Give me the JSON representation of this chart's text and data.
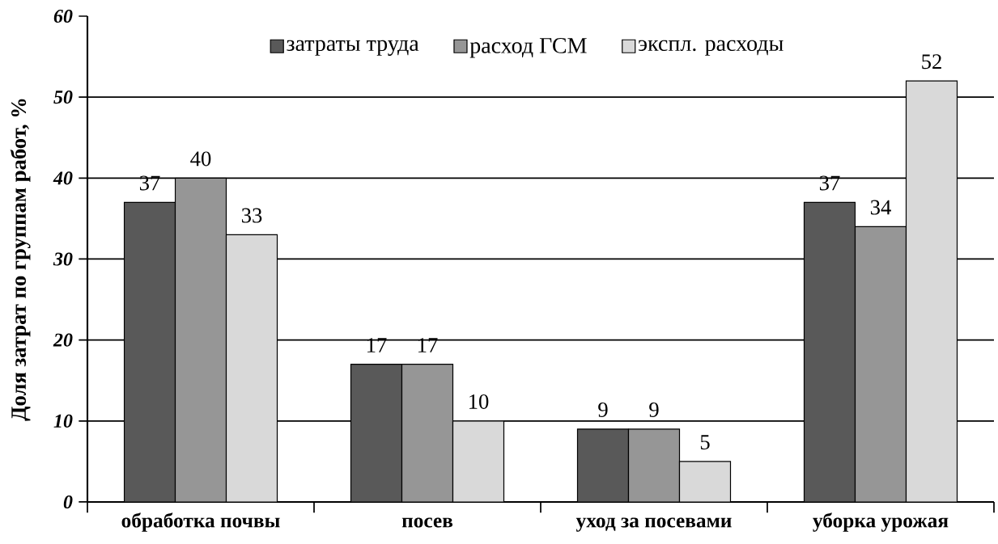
{
  "chart_data": {
    "type": "bar",
    "ylabel": "Доля затрат по группам работ, %",
    "categories": [
      "обработка почвы",
      "посев",
      "уход за посевами",
      "уборка урожая"
    ],
    "series": [
      {
        "name": "затраты труда",
        "color": "#595959",
        "values": [
          37,
          17,
          9,
          37
        ]
      },
      {
        "name": "расход ГСМ",
        "color": "#969696",
        "values": [
          40,
          17,
          9,
          34
        ]
      },
      {
        "name": "экспл. расходы",
        "color": "#d9d9d9",
        "values": [
          33,
          10,
          5,
          52
        ]
      }
    ],
    "ylim": [
      0,
      60
    ],
    "yticks": [
      0,
      10,
      20,
      30,
      40,
      50,
      60
    ],
    "grid": "y",
    "legend": "top",
    "data_labels": true
  }
}
